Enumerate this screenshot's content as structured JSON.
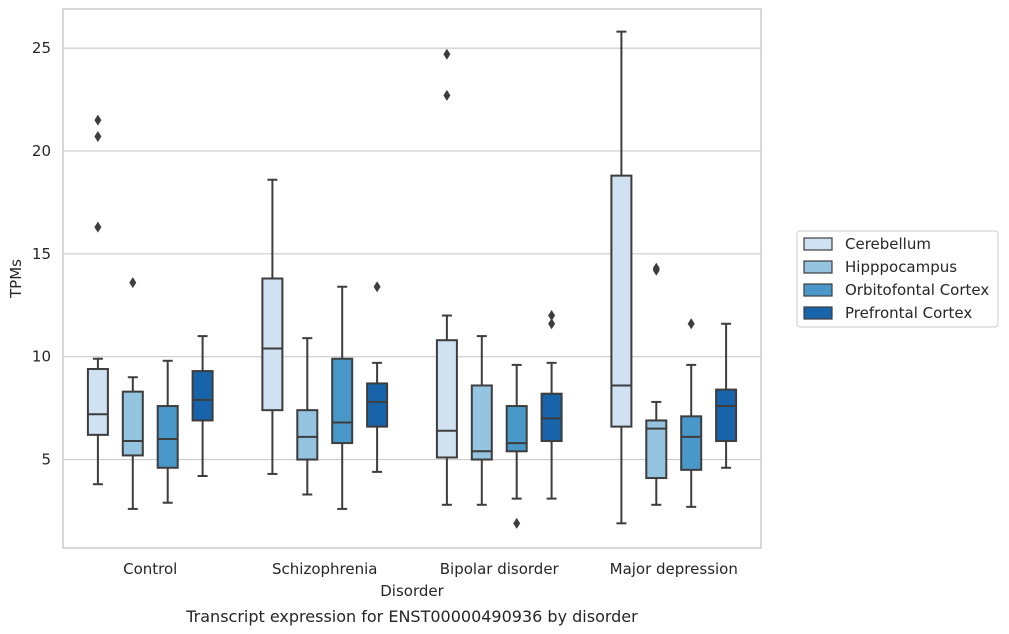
{
  "chart_data": {
    "type": "box",
    "title": "",
    "caption": "Transcript expression for ENST00000490936 by disorder",
    "xlabel": "Disorder",
    "ylabel": "TPMs",
    "ylim": [
      0.7,
      26.9
    ],
    "yticks": [
      5,
      10,
      15,
      20,
      25
    ],
    "grid": "horizontal",
    "legend_position": "right",
    "categories": [
      "Control",
      "Schizophrenia",
      "Bipolar disorder",
      "Major depression"
    ],
    "series": [
      {
        "name": "Cerebellum",
        "color": "#d0e1f2",
        "boxes": [
          {
            "whisker_low": 3.8,
            "q1": 6.2,
            "median": 7.2,
            "q3": 9.4,
            "whisker_high": 9.9,
            "outliers": [
              16.3,
              20.7,
              21.5
            ]
          },
          {
            "whisker_low": 4.3,
            "q1": 7.4,
            "median": 10.4,
            "q3": 13.8,
            "whisker_high": 18.6,
            "outliers": []
          },
          {
            "whisker_low": 2.8,
            "q1": 5.1,
            "median": 6.4,
            "q3": 10.8,
            "whisker_high": 12.0,
            "outliers": [
              22.7,
              24.7
            ]
          },
          {
            "whisker_low": 1.9,
            "q1": 6.6,
            "median": 8.6,
            "q3": 18.8,
            "whisker_high": 25.8,
            "outliers": []
          }
        ]
      },
      {
        "name": "Hipppocampus",
        "color": "#94c4df",
        "boxes": [
          {
            "whisker_low": 2.6,
            "q1": 5.2,
            "median": 5.9,
            "q3": 8.3,
            "whisker_high": 9.0,
            "outliers": [
              13.6
            ]
          },
          {
            "whisker_low": 3.3,
            "q1": 5.0,
            "median": 6.1,
            "q3": 7.4,
            "whisker_high": 10.9,
            "outliers": []
          },
          {
            "whisker_low": 2.8,
            "q1": 5.0,
            "median": 5.4,
            "q3": 8.6,
            "whisker_high": 11.0,
            "outliers": []
          },
          {
            "whisker_low": 2.8,
            "q1": 4.1,
            "median": 6.5,
            "q3": 6.9,
            "whisker_high": 7.8,
            "outliers": [
              14.2,
              14.3
            ]
          }
        ]
      },
      {
        "name": "Orbitofontal Cortex",
        "color": "#4a98c9",
        "boxes": [
          {
            "whisker_low": 2.9,
            "q1": 4.6,
            "median": 6.0,
            "q3": 7.6,
            "whisker_high": 9.8,
            "outliers": []
          },
          {
            "whisker_low": 2.6,
            "q1": 5.8,
            "median": 6.8,
            "q3": 9.9,
            "whisker_high": 13.4,
            "outliers": []
          },
          {
            "whisker_low": 3.1,
            "q1": 5.4,
            "median": 5.8,
            "q3": 7.6,
            "whisker_high": 9.6,
            "outliers": [
              1.9
            ]
          },
          {
            "whisker_low": 2.7,
            "q1": 4.5,
            "median": 6.1,
            "q3": 7.1,
            "whisker_high": 9.6,
            "outliers": [
              11.6
            ]
          }
        ]
      },
      {
        "name": "Prefrontal Cortex",
        "color": "#1764ab",
        "boxes": [
          {
            "whisker_low": 4.2,
            "q1": 6.9,
            "median": 7.9,
            "q3": 9.3,
            "whisker_high": 11.0,
            "outliers": []
          },
          {
            "whisker_low": 4.4,
            "q1": 6.6,
            "median": 7.8,
            "q3": 8.7,
            "whisker_high": 9.7,
            "outliers": [
              13.4
            ]
          },
          {
            "whisker_low": 3.1,
            "q1": 5.9,
            "median": 7.0,
            "q3": 8.2,
            "whisker_high": 9.7,
            "outliers": [
              11.6,
              12.0
            ]
          },
          {
            "whisker_low": 4.6,
            "q1": 5.9,
            "median": 7.6,
            "q3": 8.4,
            "whisker_high": 11.6,
            "outliers": []
          }
        ]
      }
    ]
  }
}
